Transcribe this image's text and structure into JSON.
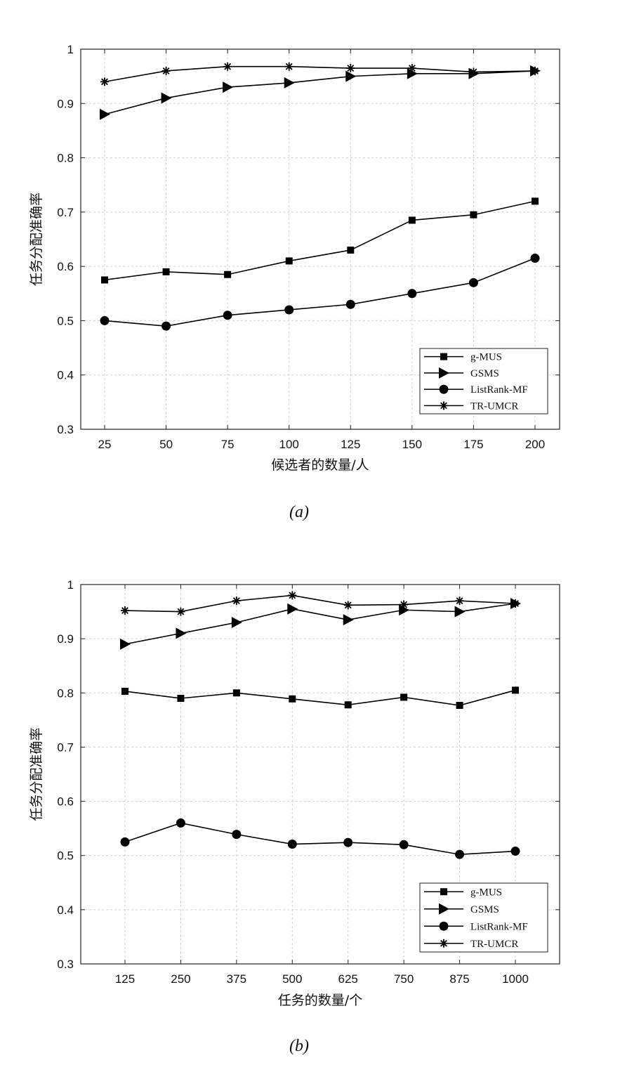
{
  "chart_data": [
    {
      "type": "line",
      "caption": "(a)",
      "xlabel": "候选者的数量/人",
      "ylabel": "任务分配准确率",
      "categories": [
        "25",
        "50",
        "75",
        "100",
        "125",
        "150",
        "175",
        "200"
      ],
      "ylim": [
        0.3,
        1.0
      ],
      "yticks": [
        "0.3",
        "0.4",
        "0.5",
        "0.6",
        "0.7",
        "0.8",
        "0.9",
        "1"
      ],
      "grid": true,
      "legend_position": "bottom-right",
      "series": [
        {
          "name": "g-MUS",
          "marker": "square",
          "values": [
            0.575,
            0.59,
            0.585,
            0.61,
            0.63,
            0.685,
            0.695,
            0.72
          ]
        },
        {
          "name": "GSMS",
          "marker": "triangle-right",
          "values": [
            0.88,
            0.91,
            0.93,
            0.938,
            0.95,
            0.955,
            0.955,
            0.96
          ]
        },
        {
          "name": "ListRank-MF",
          "marker": "circle",
          "values": [
            0.5,
            0.49,
            0.51,
            0.52,
            0.53,
            0.55,
            0.57,
            0.615
          ]
        },
        {
          "name": "TR-UMCR",
          "marker": "asterisk",
          "values": [
            0.94,
            0.96,
            0.968,
            0.968,
            0.965,
            0.965,
            0.958,
            0.96
          ]
        }
      ]
    },
    {
      "type": "line",
      "caption": "(b)",
      "xlabel": "任务的数量/个",
      "ylabel": "任务分配准确率",
      "categories": [
        "125",
        "250",
        "375",
        "500",
        "625",
        "750",
        "875",
        "1000"
      ],
      "ylim": [
        0.3,
        1.0
      ],
      "yticks": [
        "0.3",
        "0.4",
        "0.5",
        "0.6",
        "0.7",
        "0.8",
        "0.9",
        "1"
      ],
      "grid": true,
      "legend_position": "bottom-right",
      "series": [
        {
          "name": "g-MUS",
          "marker": "square",
          "values": [
            0.803,
            0.79,
            0.8,
            0.789,
            0.778,
            0.792,
            0.777,
            0.805
          ]
        },
        {
          "name": "GSMS",
          "marker": "triangle-right",
          "values": [
            0.89,
            0.91,
            0.93,
            0.955,
            0.935,
            0.953,
            0.95,
            0.965
          ]
        },
        {
          "name": "ListRank-MF",
          "marker": "circle",
          "values": [
            0.525,
            0.56,
            0.539,
            0.521,
            0.524,
            0.52,
            0.502,
            0.508
          ]
        },
        {
          "name": "TR-UMCR",
          "marker": "asterisk",
          "values": [
            0.952,
            0.95,
            0.97,
            0.98,
            0.962,
            0.963,
            0.97,
            0.965
          ]
        }
      ]
    }
  ]
}
